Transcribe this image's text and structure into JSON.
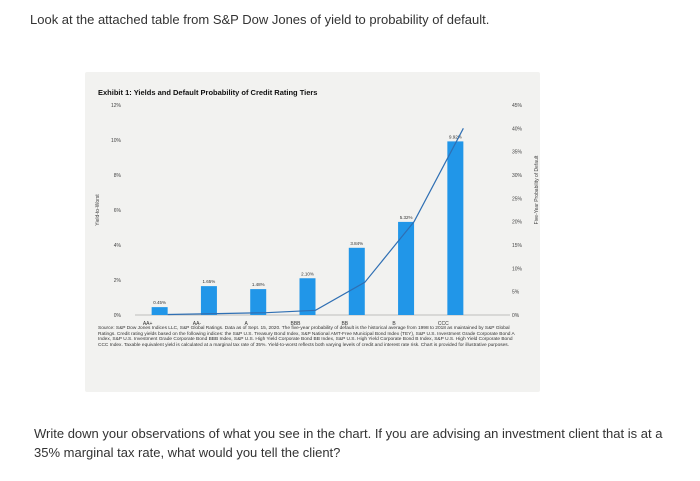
{
  "question_top": "Look at the attached table from S&P Dow Jones of yield to probability of default.",
  "exhibit_title": "Exhibit 1: Yields and Default Probability of Credit Rating Tiers",
  "chart_data": {
    "type": "bar",
    "categories": [
      "AA+",
      "AA-",
      "A",
      "BBB",
      "BB",
      "B",
      "CCC"
    ],
    "series": [
      {
        "name": "Yield to Worst (LHS)",
        "kind": "bar",
        "axis": "left",
        "values": [
          0.45,
          1.65,
          1.48,
          2.1,
          3.84,
          5.32,
          9.92
        ],
        "labels": [
          "0.45%",
          "1.65%",
          "1.48%",
          "2.10%",
          "3.84%",
          "5.32%",
          "9.92%"
        ]
      },
      {
        "name": "Five-Year Probability of Default (RHS)",
        "kind": "line",
        "axis": "right",
        "values": [
          0.1,
          0.3,
          0.5,
          1.0,
          7.0,
          20.0,
          40.0
        ]
      }
    ],
    "ylabel": "Yield-to-Worst",
    "y2label": "Five-Year Probability of Default",
    "ylim": [
      0,
      12
    ],
    "y2lim": [
      0,
      45
    ],
    "yticks": [
      "0%",
      "2%",
      "4%",
      "6%",
      "8%",
      "10%",
      "12%"
    ],
    "y2ticks": [
      "0%",
      "5%",
      "10%",
      "15%",
      "20%",
      "25%",
      "30%",
      "35%",
      "40%",
      "45%"
    ],
    "bar_color": "#2196e8",
    "line_color": "#2f6fb3",
    "legend_position": "bottom"
  },
  "source_note": "Source: S&P Dow Jones Indices LLC, S&P Global Ratings. Data as of Sept. 15, 2020. The five-year probability of default is the historical average from 1998 to 2018 as maintained by S&P Global Ratings. Credit rating yields based on the following indices: the S&P U.S. Treasury Bond Index, S&P National AMT-Free Municipal Bond Index (TEY), S&P U.S. Investment Grade Corporate Bond A Index, S&P U.S. Investment Grade Corporate Bond BBB Index, S&P U.S. High Yield Corporate Bond BB Index, S&P U.S. High Yield Corporate Bond B Index, S&P U.S. High Yield Corporate Bond CCC Index. Taxable equivalent yield is calculated at a marginal tax rate of 35%. Yield-to-worst reflects both varying levels of credit and interest rate risk. Chart is provided for illustrative purposes.",
  "prompt": "Write down your observations of what you see in the chart. If you are advising an investment client that is at a 35% marginal tax rate, what would you tell the client?"
}
